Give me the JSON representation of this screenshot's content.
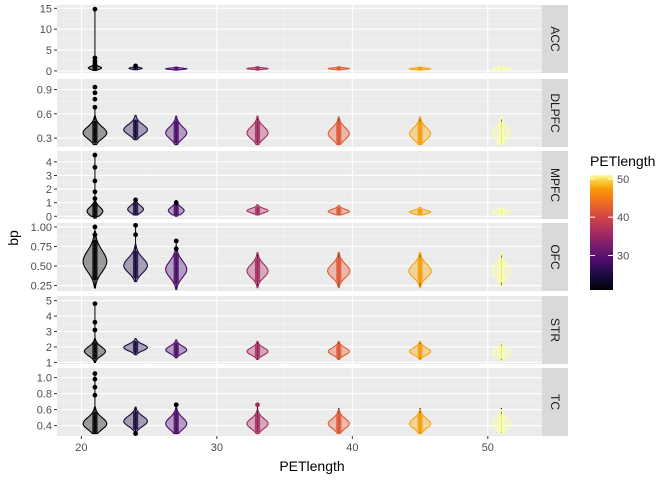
{
  "chart_data": {
    "type": "violin",
    "xlabel": "PETlength",
    "ylabel": "bp",
    "xlim": [
      18.2,
      54.0
    ],
    "x_ticks": [
      20,
      30,
      40,
      50
    ],
    "x_tick_labels": [
      "20",
      "30",
      "40",
      "50"
    ],
    "grid": true,
    "facet_by": "region",
    "colors": {
      "panel_background": "#ebebeb",
      "grid_major": "#ffffff",
      "strip_background": "#d9d9d9",
      "point": "#000000"
    },
    "groups_x": [
      21,
      24,
      27,
      33,
      39,
      45,
      51
    ],
    "legend": {
      "title": "PETlength",
      "position": "right",
      "range": [
        21,
        51
      ],
      "ticks": [
        30,
        40,
        50
      ],
      "tick_labels": [
        "30",
        "40",
        "50"
      ],
      "colormap": "inferno",
      "group_colors": [
        "#000004",
        "#1b0c41",
        "#4a0c6b",
        "#a52c60",
        "#e35933",
        "#f9a309",
        "#fcffa4"
      ]
    },
    "facets": [
      {
        "name": "ACC",
        "ylim": [
          -0.5,
          15.8
        ],
        "y_ticks": [
          0,
          5,
          10,
          15
        ],
        "y_tick_labels": [
          "0",
          "5",
          "10",
          "15"
        ],
        "groups": [
          {
            "x": 21,
            "center": 0.7,
            "spread": 0.35,
            "width": 0.5,
            "low": 0.1,
            "high": 14.8,
            "outliers": [
              1.1,
              1.6,
              2.3,
              3.1,
              14.8
            ]
          },
          {
            "x": 24,
            "center": 0.6,
            "spread": 0.2,
            "width": 0.5,
            "low": 0.3,
            "high": 1.2,
            "outliers": [
              1.2
            ]
          },
          {
            "x": 27,
            "center": 0.5,
            "spread": 0.15,
            "width": 0.8,
            "low": 0.2,
            "high": 0.8,
            "outliers": []
          },
          {
            "x": 33,
            "center": 0.55,
            "spread": 0.15,
            "width": 0.8,
            "low": 0.2,
            "high": 0.8,
            "outliers": []
          },
          {
            "x": 39,
            "center": 0.55,
            "spread": 0.15,
            "width": 0.8,
            "low": 0.2,
            "high": 0.9,
            "outliers": []
          },
          {
            "x": 45,
            "center": 0.5,
            "spread": 0.15,
            "width": 0.8,
            "low": 0.2,
            "high": 0.8,
            "outliers": []
          },
          {
            "x": 51,
            "center": 0.5,
            "spread": 0.18,
            "width": 0.7,
            "low": 0.1,
            "high": 0.9,
            "outliers": []
          }
        ]
      },
      {
        "name": "DLPFC",
        "ylim": [
          0.19,
          1.03
        ],
        "y_ticks": [
          0.3,
          0.6,
          0.9
        ],
        "y_tick_labels": [
          "0.3",
          "0.6",
          "0.9"
        ],
        "groups": [
          {
            "x": 21,
            "center": 0.36,
            "spread": 0.07,
            "width": 0.9,
            "low": 0.22,
            "high": 0.68,
            "outliers": [
              0.68,
              0.78,
              0.86,
              0.93
            ]
          },
          {
            "x": 24,
            "center": 0.4,
            "spread": 0.06,
            "width": 0.9,
            "low": 0.28,
            "high": 0.52,
            "outliers": []
          },
          {
            "x": 27,
            "center": 0.36,
            "spread": 0.07,
            "width": 0.8,
            "low": 0.22,
            "high": 0.54,
            "outliers": []
          },
          {
            "x": 33,
            "center": 0.36,
            "spread": 0.07,
            "width": 0.8,
            "low": 0.22,
            "high": 0.54,
            "outliers": []
          },
          {
            "x": 39,
            "center": 0.35,
            "spread": 0.07,
            "width": 0.8,
            "low": 0.22,
            "high": 0.54,
            "outliers": []
          },
          {
            "x": 45,
            "center": 0.35,
            "spread": 0.07,
            "width": 0.8,
            "low": 0.22,
            "high": 0.54,
            "outliers": []
          },
          {
            "x": 51,
            "center": 0.35,
            "spread": 0.07,
            "width": 0.7,
            "low": 0.22,
            "high": 0.54,
            "outliers": []
          }
        ]
      },
      {
        "name": "MPFC",
        "ylim": [
          -0.2,
          4.8
        ],
        "y_ticks": [
          0,
          1,
          2,
          3,
          4
        ],
        "y_tick_labels": [
          "0",
          "1",
          "2",
          "3",
          "4"
        ],
        "groups": [
          {
            "x": 21,
            "center": 0.35,
            "spread": 0.3,
            "width": 0.6,
            "low": 0.0,
            "high": 4.5,
            "outliers": [
              1.3,
              1.8,
              2.6,
              3.6,
              4.5
            ]
          },
          {
            "x": 24,
            "center": 0.5,
            "spread": 0.25,
            "width": 0.6,
            "low": 0.1,
            "high": 1.2,
            "outliers": [
              1.2
            ]
          },
          {
            "x": 27,
            "center": 0.4,
            "spread": 0.25,
            "width": 0.6,
            "low": 0.1,
            "high": 1.0,
            "outliers": [
              1.0
            ]
          },
          {
            "x": 33,
            "center": 0.4,
            "spread": 0.15,
            "width": 0.8,
            "low": 0.1,
            "high": 0.6,
            "outliers": []
          },
          {
            "x": 39,
            "center": 0.35,
            "spread": 0.15,
            "width": 0.8,
            "low": 0.1,
            "high": 0.6,
            "outliers": []
          },
          {
            "x": 45,
            "center": 0.3,
            "spread": 0.12,
            "width": 0.8,
            "low": 0.1,
            "high": 0.5,
            "outliers": []
          },
          {
            "x": 51,
            "center": 0.3,
            "spread": 0.12,
            "width": 0.7,
            "low": 0.1,
            "high": 0.5,
            "outliers": []
          }
        ]
      },
      {
        "name": "OFC",
        "ylim": [
          0.18,
          1.05
        ],
        "y_ticks": [
          0.25,
          0.5,
          0.75,
          1.0
        ],
        "y_tick_labels": [
          "0.25",
          "0.50",
          "0.75",
          "1.00"
        ],
        "groups": [
          {
            "x": 21,
            "center": 0.55,
            "spread": 0.13,
            "width": 0.9,
            "low": 0.22,
            "high": 1.0,
            "outliers": [
              0.9,
              1.0
            ]
          },
          {
            "x": 24,
            "center": 0.5,
            "spread": 0.09,
            "width": 0.9,
            "low": 0.3,
            "high": 1.02,
            "outliers": [
              0.9,
              1.02
            ]
          },
          {
            "x": 27,
            "center": 0.45,
            "spread": 0.1,
            "width": 0.8,
            "low": 0.2,
            "high": 0.82,
            "outliers": [
              0.72,
              0.82
            ]
          },
          {
            "x": 33,
            "center": 0.43,
            "spread": 0.08,
            "width": 0.8,
            "low": 0.22,
            "high": 0.66,
            "outliers": []
          },
          {
            "x": 39,
            "center": 0.43,
            "spread": 0.08,
            "width": 0.85,
            "low": 0.22,
            "high": 0.68,
            "outliers": []
          },
          {
            "x": 45,
            "center": 0.43,
            "spread": 0.08,
            "width": 0.85,
            "low": 0.22,
            "high": 0.66,
            "outliers": []
          },
          {
            "x": 51,
            "center": 0.43,
            "spread": 0.08,
            "width": 0.7,
            "low": 0.22,
            "high": 0.66,
            "outliers": []
          }
        ]
      },
      {
        "name": "STR",
        "ylim": [
          0.9,
          5.3
        ],
        "y_ticks": [
          1,
          2,
          3,
          4,
          5
        ],
        "y_tick_labels": [
          "1",
          "2",
          "3",
          "4",
          "5"
        ],
        "groups": [
          {
            "x": 21,
            "center": 1.7,
            "spread": 0.28,
            "width": 0.8,
            "low": 1.0,
            "high": 4.8,
            "outliers": [
              3.1,
              3.6,
              4.8
            ]
          },
          {
            "x": 24,
            "center": 1.95,
            "spread": 0.2,
            "width": 0.9,
            "low": 1.5,
            "high": 2.4,
            "outliers": []
          },
          {
            "x": 27,
            "center": 1.8,
            "spread": 0.22,
            "width": 0.8,
            "low": 1.3,
            "high": 2.3,
            "outliers": []
          },
          {
            "x": 33,
            "center": 1.7,
            "spread": 0.22,
            "width": 0.8,
            "low": 1.2,
            "high": 2.3,
            "outliers": []
          },
          {
            "x": 39,
            "center": 1.7,
            "spread": 0.22,
            "width": 0.8,
            "low": 1.2,
            "high": 2.3,
            "outliers": []
          },
          {
            "x": 45,
            "center": 1.7,
            "spread": 0.22,
            "width": 0.8,
            "low": 1.2,
            "high": 2.3,
            "outliers": []
          },
          {
            "x": 51,
            "center": 1.6,
            "spread": 0.22,
            "width": 0.7,
            "low": 1.1,
            "high": 2.3,
            "outliers": []
          }
        ]
      },
      {
        "name": "TC",
        "ylim": [
          0.27,
          1.12
        ],
        "y_ticks": [
          0.4,
          0.6,
          0.8,
          1.0
        ],
        "y_tick_labels": [
          "0.4",
          "0.6",
          "0.8",
          "1.0"
        ],
        "groups": [
          {
            "x": 21,
            "center": 0.42,
            "spread": 0.07,
            "width": 0.9,
            "low": 0.3,
            "high": 1.05,
            "outliers": [
              0.78,
              0.88,
              0.98,
              1.05
            ]
          },
          {
            "x": 24,
            "center": 0.45,
            "spread": 0.06,
            "width": 0.9,
            "low": 0.3,
            "high": 0.62,
            "outliers": [
              0.3
            ]
          },
          {
            "x": 27,
            "center": 0.42,
            "spread": 0.07,
            "width": 0.8,
            "low": 0.3,
            "high": 0.66,
            "outliers": [
              0.66
            ]
          },
          {
            "x": 33,
            "center": 0.42,
            "spread": 0.06,
            "width": 0.8,
            "low": 0.3,
            "high": 0.66,
            "outliers": [
              0.66
            ]
          },
          {
            "x": 39,
            "center": 0.42,
            "spread": 0.06,
            "width": 0.8,
            "low": 0.3,
            "high": 0.62,
            "outliers": []
          },
          {
            "x": 45,
            "center": 0.42,
            "spread": 0.06,
            "width": 0.8,
            "low": 0.3,
            "high": 0.62,
            "outliers": []
          },
          {
            "x": 51,
            "center": 0.42,
            "spread": 0.06,
            "width": 0.7,
            "low": 0.3,
            "high": 0.62,
            "outliers": []
          }
        ]
      }
    ]
  }
}
